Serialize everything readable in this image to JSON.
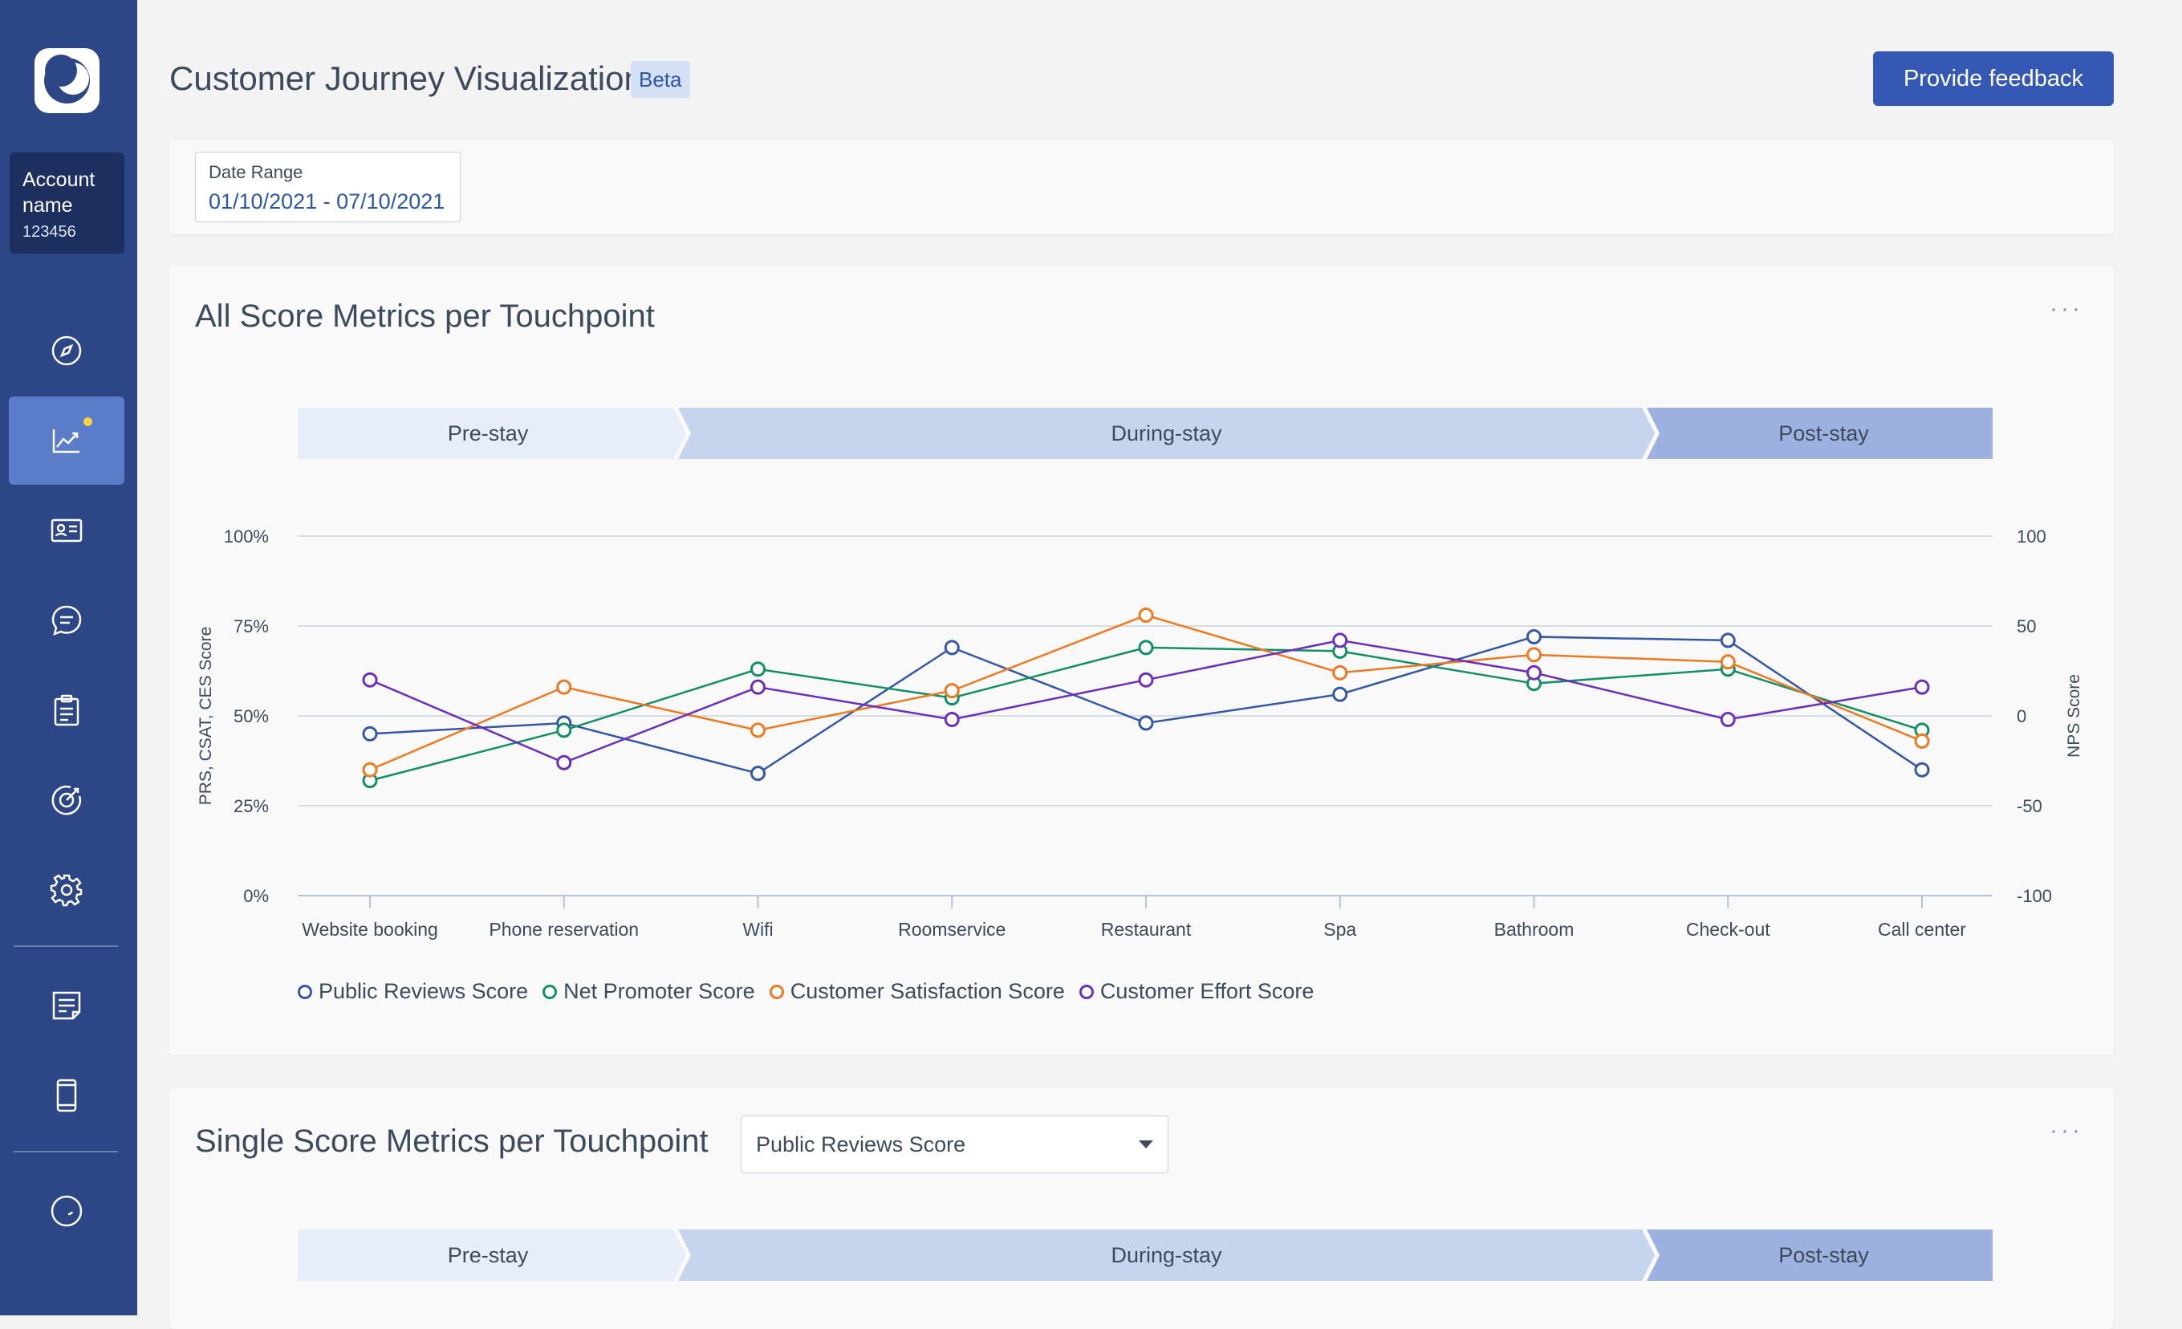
{
  "sidebar": {
    "account": {
      "name": "Account name",
      "id": "123456"
    },
    "items": [
      {
        "icon": "compass-icon"
      },
      {
        "icon": "trend-chart-icon",
        "active": true
      },
      {
        "icon": "id-card-icon"
      },
      {
        "icon": "chat-bubble-icon"
      },
      {
        "icon": "clipboard-icon"
      },
      {
        "icon": "target-icon"
      },
      {
        "icon": "gear-icon"
      },
      {
        "icon": "notes-icon"
      },
      {
        "icon": "mobile-icon"
      },
      {
        "icon": "smiley-icon"
      }
    ]
  },
  "header": {
    "title": "Customer Journey Visualization",
    "badge": "Beta",
    "feedback_label": "Provide feedback"
  },
  "date_range": {
    "label": "Date Range",
    "value": "01/10/2021 - 07/10/2021"
  },
  "all_scores_card": {
    "title": "All Score Metrics per Touchpoint",
    "more": "···",
    "stages": [
      "Pre-stay",
      "During-stay",
      "Post-stay"
    ]
  },
  "single_score_card": {
    "title": "Single Score Metrics per Touchpoint",
    "more": "···",
    "select_value": "Public Reviews Score",
    "stages": [
      "Pre-stay",
      "During-stay",
      "Post-stay"
    ]
  },
  "colors": {
    "prs": "#3558a6",
    "nps": "#138f66",
    "csat": "#ed7a22",
    "ces": "#6b2fba"
  },
  "chart_data": {
    "type": "line",
    "categories": [
      "Website booking",
      "Phone reservation",
      "Wifi",
      "Roomservice",
      "Restaurant",
      "Spa",
      "Bathroom",
      "Check-out",
      "Call center"
    ],
    "ylabel": "PRS, CSAT, CES Score",
    "y2label": "NPS Score",
    "ylim": [
      0,
      100
    ],
    "y2lim": [
      -100,
      100
    ],
    "yticks": [
      "0%",
      "25%",
      "50%",
      "75%",
      "100%"
    ],
    "y2ticks": [
      "-100",
      "-50",
      "0",
      "50",
      "100"
    ],
    "grid": true,
    "legend_position": "bottom-left",
    "series": [
      {
        "name": "Public Reviews Score",
        "color": "#3558a6",
        "values": [
          45,
          48,
          34,
          69,
          48,
          56,
          72,
          71,
          35
        ]
      },
      {
        "name": "Net Promoter Score",
        "color": "#138f66",
        "values": [
          32,
          46,
          63,
          55,
          69,
          68,
          59,
          63,
          46
        ]
      },
      {
        "name": "Customer Satisfaction Score",
        "color": "#ed7a22",
        "values": [
          35,
          58,
          46,
          57,
          78,
          62,
          67,
          65,
          43
        ]
      },
      {
        "name": "Customer Effort Score",
        "color": "#6b2fba",
        "values": [
          60,
          37,
          58,
          49,
          60,
          71,
          62,
          49,
          58
        ]
      }
    ]
  }
}
